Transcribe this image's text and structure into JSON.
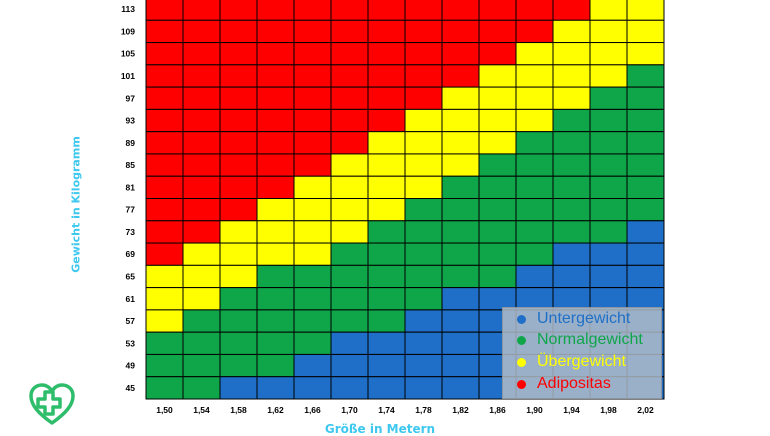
{
  "chart_data": {
    "type": "heatmap",
    "xlabel": "Größe in Metern",
    "ylabel": "Gewicht in Kilogramm",
    "x_tick_labels": [
      "1,50",
      "1,54",
      "1,58",
      "1,62",
      "1,66",
      "1,70",
      "1,74",
      "1,78",
      "1,82",
      "1,86",
      "1,90",
      "1,94",
      "1,98",
      "2,02"
    ],
    "y_tick_labels": [
      "113",
      "109",
      "105",
      "101",
      "97",
      "93",
      "89",
      "85",
      "81",
      "77",
      "73",
      "69",
      "65",
      "61",
      "57",
      "53",
      "49",
      "45"
    ],
    "categories": [
      {
        "key": "U",
        "name": "Untergewicht",
        "color": "#1f6fc8"
      },
      {
        "key": "N",
        "name": "Normalgewicht",
        "color": "#0fa64a"
      },
      {
        "key": "Ü",
        "name": "Übergewicht",
        "color": "#ffff00"
      },
      {
        "key": "A",
        "name": "Adipositas",
        "color": "#ff0000"
      }
    ],
    "grid": [
      [
        "A",
        "A",
        "A",
        "A",
        "A",
        "A",
        "A",
        "A",
        "A",
        "A",
        "A",
        "A",
        "Ü",
        "Ü"
      ],
      [
        "A",
        "A",
        "A",
        "A",
        "A",
        "A",
        "A",
        "A",
        "A",
        "A",
        "A",
        "Ü",
        "Ü",
        "Ü"
      ],
      [
        "A",
        "A",
        "A",
        "A",
        "A",
        "A",
        "A",
        "A",
        "A",
        "A",
        "Ü",
        "Ü",
        "Ü",
        "Ü"
      ],
      [
        "A",
        "A",
        "A",
        "A",
        "A",
        "A",
        "A",
        "A",
        "A",
        "Ü",
        "Ü",
        "Ü",
        "Ü",
        "N"
      ],
      [
        "A",
        "A",
        "A",
        "A",
        "A",
        "A",
        "A",
        "A",
        "Ü",
        "Ü",
        "Ü",
        "Ü",
        "N",
        "N"
      ],
      [
        "A",
        "A",
        "A",
        "A",
        "A",
        "A",
        "A",
        "Ü",
        "Ü",
        "Ü",
        "Ü",
        "N",
        "N",
        "N"
      ],
      [
        "A",
        "A",
        "A",
        "A",
        "A",
        "A",
        "Ü",
        "Ü",
        "Ü",
        "Ü",
        "N",
        "N",
        "N",
        "N"
      ],
      [
        "A",
        "A",
        "A",
        "A",
        "A",
        "Ü",
        "Ü",
        "Ü",
        "Ü",
        "N",
        "N",
        "N",
        "N",
        "N"
      ],
      [
        "A",
        "A",
        "A",
        "A",
        "Ü",
        "Ü",
        "Ü",
        "Ü",
        "N",
        "N",
        "N",
        "N",
        "N",
        "N"
      ],
      [
        "A",
        "A",
        "A",
        "Ü",
        "Ü",
        "Ü",
        "Ü",
        "N",
        "N",
        "N",
        "N",
        "N",
        "N",
        "N"
      ],
      [
        "A",
        "A",
        "Ü",
        "Ü",
        "Ü",
        "Ü",
        "N",
        "N",
        "N",
        "N",
        "N",
        "N",
        "N",
        "U"
      ],
      [
        "A",
        "Ü",
        "Ü",
        "Ü",
        "Ü",
        "N",
        "N",
        "N",
        "N",
        "N",
        "N",
        "U",
        "U",
        "U"
      ],
      [
        "Ü",
        "Ü",
        "Ü",
        "N",
        "N",
        "N",
        "N",
        "N",
        "N",
        "N",
        "U",
        "U",
        "U",
        "U"
      ],
      [
        "Ü",
        "Ü",
        "N",
        "N",
        "N",
        "N",
        "N",
        "N",
        "U",
        "U",
        "U",
        "U",
        "U",
        "U"
      ],
      [
        "Ü",
        "N",
        "N",
        "N",
        "N",
        "N",
        "N",
        "U",
        "U",
        "U",
        "U",
        "U",
        "U",
        "U"
      ],
      [
        "N",
        "N",
        "N",
        "N",
        "N",
        "U",
        "U",
        "U",
        "U",
        "U",
        "U",
        "U",
        "U",
        "U"
      ],
      [
        "N",
        "N",
        "N",
        "N",
        "U",
        "U",
        "U",
        "U",
        "U",
        "U",
        "U",
        "U",
        "U",
        "U"
      ],
      [
        "N",
        "N",
        "U",
        "U",
        "U",
        "U",
        "U",
        "U",
        "U",
        "U",
        "U",
        "U",
        "U",
        "U"
      ]
    ],
    "legend_position": "bottom-right"
  },
  "logo": {
    "color": "#2ebd6b",
    "icon": "cross-heart-icon"
  }
}
